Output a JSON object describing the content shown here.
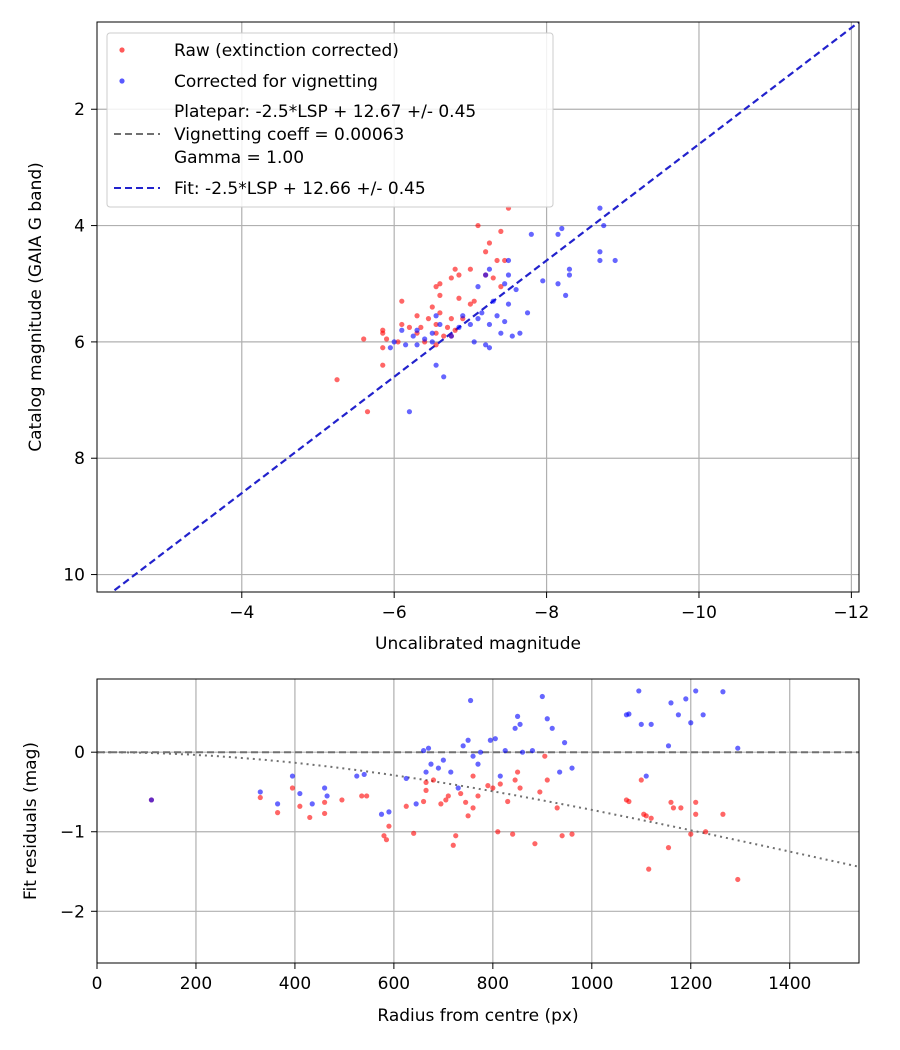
{
  "colors": {
    "raw": "#ff0000",
    "corrected": "#0000ff",
    "fit_line": "#2222cc",
    "platepar_line": "#707070",
    "grid": "#b0b0b0",
    "vignetting_curve": "#707070"
  },
  "chart_data": [
    {
      "type": "scatter",
      "xlabel": "Uncalibrated magnitude",
      "ylabel": "Catalog magnitude (GAIA G band)",
      "xlim": [
        -2.1,
        -12.1
      ],
      "ylim": [
        10.3,
        0.5
      ],
      "x_inverted": true,
      "y_inverted": true,
      "grid": true,
      "legend_position": "upper-left",
      "x_ticks": [
        -4,
        -6,
        -8,
        -10,
        -12
      ],
      "x_tick_labels": [
        "−4",
        "−6",
        "−8",
        "−10",
        "−12"
      ],
      "y_ticks": [
        2,
        4,
        6,
        8,
        10
      ],
      "y_tick_labels": [
        "2",
        "4",
        "6",
        "8",
        "10"
      ],
      "legend": [
        {
          "label": "Raw (extinction corrected)",
          "kind": "marker",
          "color": "#ff0000"
        },
        {
          "label": "Corrected for vignetting",
          "kind": "marker",
          "color": "#0000ff"
        },
        {
          "label": "Platepar: -2.5*LSP + 12.67 +/- 0.45",
          "label2": "Vignetting coeff = 0.00063",
          "label3": "Gamma = 1.00",
          "kind": "dashed-line",
          "color": "#707070"
        },
        {
          "label": "Fit: -2.5*LSP + 12.66 +/- 0.45",
          "kind": "dashed-line",
          "color": "#2222cc"
        }
      ],
      "fit_line": {
        "label": "Fit: -2.5*LSP + 12.66 +/- 0.45",
        "x": [
          -2.1,
          -12.1
        ],
        "y": [
          10.5,
          0.5
        ]
      },
      "series": [
        {
          "name": "Raw (extinction corrected)",
          "color": "#ff0000",
          "points": [
            [
              -7.5,
              3.7
            ],
            [
              -7.1,
              4.0
            ],
            [
              -7.4,
              4.1
            ],
            [
              -7.25,
              4.3
            ],
            [
              -7.2,
              4.45
            ],
            [
              -7.35,
              4.6
            ],
            [
              -7.45,
              4.6
            ],
            [
              -6.8,
              4.75
            ],
            [
              -7.0,
              4.75
            ],
            [
              -6.75,
              4.9
            ],
            [
              -6.85,
              4.85
            ],
            [
              -7.2,
              4.85
            ],
            [
              -7.3,
              4.9
            ],
            [
              -6.6,
              5.0
            ],
            [
              -6.55,
              5.05
            ],
            [
              -7.4,
              5.05
            ],
            [
              -6.6,
              5.2
            ],
            [
              -6.85,
              5.25
            ],
            [
              -7.05,
              5.3
            ],
            [
              -7.0,
              5.35
            ],
            [
              -6.1,
              5.3
            ],
            [
              -6.5,
              5.4
            ],
            [
              -6.6,
              5.5
            ],
            [
              -6.3,
              5.55
            ],
            [
              -6.75,
              5.6
            ],
            [
              -6.45,
              5.6
            ],
            [
              -6.9,
              5.6
            ],
            [
              -6.1,
              5.7
            ],
            [
              -6.2,
              5.75
            ],
            [
              -6.35,
              5.75
            ],
            [
              -6.55,
              5.7
            ],
            [
              -6.7,
              5.75
            ],
            [
              -6.8,
              5.8
            ],
            [
              -5.85,
              5.8
            ],
            [
              -5.85,
              5.85
            ],
            [
              -6.3,
              5.85
            ],
            [
              -6.55,
              5.85
            ],
            [
              -6.65,
              5.9
            ],
            [
              -6.75,
              5.9
            ],
            [
              -5.6,
              5.95
            ],
            [
              -5.9,
              5.95
            ],
            [
              -6.05,
              6.0
            ],
            [
              -6.4,
              6.0
            ],
            [
              -6.55,
              6.05
            ],
            [
              -5.85,
              6.1
            ],
            [
              -5.85,
              6.4
            ],
            [
              -5.25,
              6.65
            ],
            [
              -5.65,
              7.2
            ]
          ]
        },
        {
          "name": "Corrected for vignetting",
          "color": "#0000ff",
          "points": [
            [
              -8.7,
              3.7
            ],
            [
              -8.75,
              4.0
            ],
            [
              -8.2,
              4.05
            ],
            [
              -7.8,
              4.15
            ],
            [
              -8.15,
              4.15
            ],
            [
              -8.7,
              4.45
            ],
            [
              -8.7,
              4.6
            ],
            [
              -8.9,
              4.6
            ],
            [
              -7.5,
              4.6
            ],
            [
              -7.25,
              4.75
            ],
            [
              -8.3,
              4.75
            ],
            [
              -7.2,
              4.85
            ],
            [
              -8.3,
              4.85
            ],
            [
              -7.5,
              4.85
            ],
            [
              -7.95,
              4.95
            ],
            [
              -8.15,
              5.0
            ],
            [
              -7.45,
              5.0
            ],
            [
              -7.1,
              5.05
            ],
            [
              -7.6,
              5.1
            ],
            [
              -8.25,
              5.2
            ],
            [
              -7.3,
              5.3
            ],
            [
              -7.5,
              5.35
            ],
            [
              -7.15,
              5.5
            ],
            [
              -7.75,
              5.5
            ],
            [
              -7.35,
              5.55
            ],
            [
              -6.9,
              5.55
            ],
            [
              -7.1,
              5.6
            ],
            [
              -6.55,
              5.55
            ],
            [
              -7.45,
              5.65
            ],
            [
              -7.0,
              5.7
            ],
            [
              -7.25,
              5.7
            ],
            [
              -6.6,
              5.7
            ],
            [
              -6.85,
              5.75
            ],
            [
              -6.1,
              5.8
            ],
            [
              -6.3,
              5.8
            ],
            [
              -6.5,
              5.85
            ],
            [
              -7.4,
              5.85
            ],
            [
              -7.55,
              5.9
            ],
            [
              -7.65,
              5.85
            ],
            [
              -6.25,
              5.9
            ],
            [
              -6.75,
              5.9
            ],
            [
              -6.0,
              6.0
            ],
            [
              -6.4,
              5.95
            ],
            [
              -6.3,
              6.05
            ],
            [
              -6.5,
              6.0
            ],
            [
              -7.05,
              6.0
            ],
            [
              -7.2,
              6.05
            ],
            [
              -7.25,
              6.1
            ],
            [
              -5.95,
              6.1
            ],
            [
              -6.15,
              6.05
            ],
            [
              -6.55,
              6.4
            ],
            [
              -6.65,
              6.6
            ],
            [
              -6.2,
              7.2
            ]
          ]
        }
      ]
    },
    {
      "type": "scatter",
      "xlabel": "Radius from centre (px)",
      "ylabel": "Fit residuals (mag)",
      "xlim": [
        0,
        1540
      ],
      "ylim": [
        -2.65,
        0.92
      ],
      "grid": true,
      "x_ticks": [
        0,
        200,
        400,
        600,
        800,
        1000,
        1200,
        1400
      ],
      "x_tick_labels": [
        "0",
        "200",
        "400",
        "600",
        "800",
        "1000",
        "1200",
        "1400"
      ],
      "y_ticks": [
        0,
        -1,
        -2
      ],
      "y_tick_labels": [
        "0",
        "−1",
        "−2"
      ],
      "zero_line": {
        "y": 0,
        "style": "dashed",
        "color": "#707070"
      },
      "vignetting_curve": {
        "coeff": 0.00063,
        "gamma": 1.0,
        "style": "dotted",
        "color": "#707070"
      },
      "series": [
        {
          "name": "Raw (extinction corrected)",
          "color": "#ff0000",
          "points": [
            [
              110,
              -0.6
            ],
            [
              330,
              -0.57
            ],
            [
              365,
              -0.76
            ],
            [
              395,
              -0.45
            ],
            [
              410,
              -0.68
            ],
            [
              430,
              -0.82
            ],
            [
              460,
              -0.77
            ],
            [
              460,
              -0.63
            ],
            [
              495,
              -0.6
            ],
            [
              535,
              -0.55
            ],
            [
              545,
              -0.55
            ],
            [
              580,
              -1.05
            ],
            [
              585,
              -1.1
            ],
            [
              590,
              -0.93
            ],
            [
              625,
              -0.68
            ],
            [
              640,
              -1.02
            ],
            [
              660,
              -0.62
            ],
            [
              665,
              -0.38
            ],
            [
              665,
              -0.48
            ],
            [
              680,
              -0.35
            ],
            [
              695,
              -0.65
            ],
            [
              705,
              -0.6
            ],
            [
              710,
              -0.55
            ],
            [
              720,
              -1.17
            ],
            [
              725,
              -1.05
            ],
            [
              735,
              -0.52
            ],
            [
              745,
              -0.63
            ],
            [
              750,
              -0.8
            ],
            [
              760,
              -0.7
            ],
            [
              760,
              -0.3
            ],
            [
              770,
              -0.55
            ],
            [
              790,
              -0.42
            ],
            [
              800,
              -0.45
            ],
            [
              810,
              -1.0
            ],
            [
              815,
              -0.4
            ],
            [
              830,
              -0.62
            ],
            [
              840,
              -1.03
            ],
            [
              845,
              -0.35
            ],
            [
              850,
              -0.25
            ],
            [
              855,
              -0.45
            ],
            [
              885,
              -1.15
            ],
            [
              895,
              -0.5
            ],
            [
              905,
              -0.05
            ],
            [
              910,
              -0.35
            ],
            [
              930,
              -0.7
            ],
            [
              940,
              -1.05
            ],
            [
              960,
              -1.03
            ],
            [
              1070,
              -0.6
            ],
            [
              1075,
              -0.62
            ],
            [
              1100,
              -0.35
            ],
            [
              1105,
              -0.78
            ],
            [
              1110,
              -0.8
            ],
            [
              1115,
              -1.47
            ],
            [
              1120,
              -0.83
            ],
            [
              1155,
              -1.2
            ],
            [
              1160,
              -0.63
            ],
            [
              1165,
              -0.7
            ],
            [
              1180,
              -0.7
            ],
            [
              1200,
              -1.03
            ],
            [
              1210,
              -0.63
            ],
            [
              1210,
              -0.78
            ],
            [
              1230,
              -1.0
            ],
            [
              1265,
              -0.78
            ],
            [
              1295,
              -1.6
            ]
          ]
        },
        {
          "name": "Corrected for vignetting",
          "color": "#0000ff",
          "points": [
            [
              110,
              -0.6
            ],
            [
              330,
              -0.5
            ],
            [
              365,
              -0.65
            ],
            [
              395,
              -0.3
            ],
            [
              410,
              -0.52
            ],
            [
              435,
              -0.65
            ],
            [
              460,
              -0.45
            ],
            [
              465,
              -0.55
            ],
            [
              525,
              -0.3
            ],
            [
              540,
              -0.28
            ],
            [
              575,
              -0.78
            ],
            [
              590,
              -0.75
            ],
            [
              625,
              -0.33
            ],
            [
              645,
              -0.65
            ],
            [
              660,
              0.02
            ],
            [
              665,
              -0.25
            ],
            [
              670,
              0.05
            ],
            [
              675,
              -0.15
            ],
            [
              690,
              -0.2
            ],
            [
              700,
              -0.1
            ],
            [
              715,
              -0.25
            ],
            [
              730,
              -0.45
            ],
            [
              740,
              0.08
            ],
            [
              750,
              0.15
            ],
            [
              755,
              0.65
            ],
            [
              760,
              -0.05
            ],
            [
              770,
              -0.15
            ],
            [
              775,
              0.0
            ],
            [
              795,
              0.15
            ],
            [
              805,
              0.17
            ],
            [
              815,
              -0.3
            ],
            [
              825,
              0.02
            ],
            [
              845,
              0.3
            ],
            [
              850,
              0.45
            ],
            [
              855,
              0.35
            ],
            [
              860,
              0.0
            ],
            [
              880,
              0.02
            ],
            [
              900,
              0.7
            ],
            [
              910,
              0.42
            ],
            [
              920,
              0.3
            ],
            [
              935,
              -0.25
            ],
            [
              945,
              0.12
            ],
            [
              960,
              -0.2
            ],
            [
              1070,
              0.47
            ],
            [
              1075,
              0.48
            ],
            [
              1095,
              0.77
            ],
            [
              1100,
              0.35
            ],
            [
              1110,
              -0.3
            ],
            [
              1120,
              0.35
            ],
            [
              1155,
              0.08
            ],
            [
              1160,
              0.62
            ],
            [
              1175,
              0.47
            ],
            [
              1190,
              0.67
            ],
            [
              1200,
              0.37
            ],
            [
              1210,
              0.77
            ],
            [
              1225,
              0.47
            ],
            [
              1265,
              0.76
            ],
            [
              1295,
              0.05
            ]
          ]
        }
      ]
    }
  ]
}
